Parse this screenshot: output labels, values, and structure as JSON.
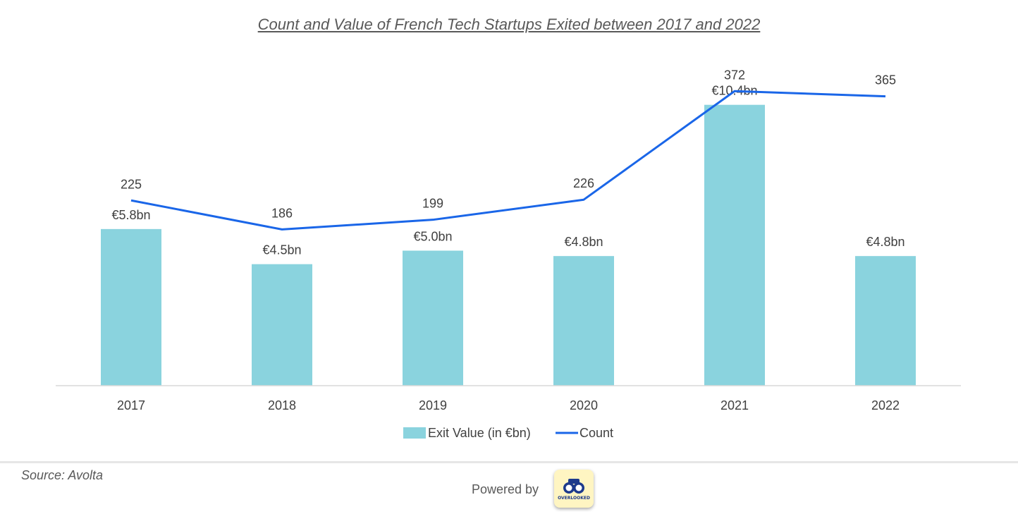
{
  "chart_data": {
    "type": "bar",
    "title": "Count and Value of French Tech Startups Exited between 2017 and 2022",
    "categories": [
      "2017",
      "2018",
      "2019",
      "2020",
      "2021",
      "2022"
    ],
    "series": [
      {
        "name": "Exit Value (in €bn)",
        "type": "bar",
        "values": [
          5.8,
          4.5,
          5.0,
          4.8,
          10.4,
          4.8
        ],
        "labels": [
          "€5.8bn",
          "€4.5bn",
          "€5.0bn",
          "€4.8bn",
          "€10.4bn",
          "€4.8bn"
        ],
        "color": "#8ad3de"
      },
      {
        "name": "Count",
        "type": "line",
        "values": [
          225,
          186,
          199,
          226,
          372,
          365
        ],
        "labels": [
          "225",
          "186",
          "199",
          "226",
          "372",
          "365"
        ],
        "color": "#1a66e8"
      }
    ],
    "legend_position": "bottom",
    "grid": false
  },
  "source": "Source: Avolta",
  "powered_by": "Powered by",
  "logo_text": "OVERLOOKED"
}
